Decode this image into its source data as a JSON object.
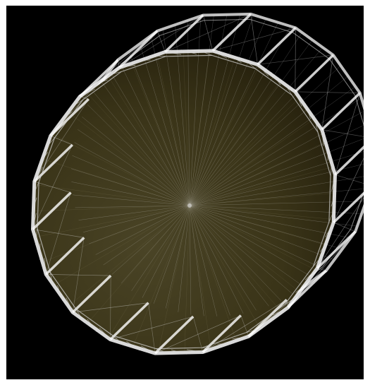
{
  "render": {
    "subject": "wireframe-disk-truss-structure",
    "background_color": "#000000",
    "frame_color": "#ffffff",
    "disk_fill_color": "#3a3418",
    "wire_color": "#d8d8d8",
    "strut_color": "#ffffff",
    "side_count": 20,
    "radial_line_count": 72
  }
}
